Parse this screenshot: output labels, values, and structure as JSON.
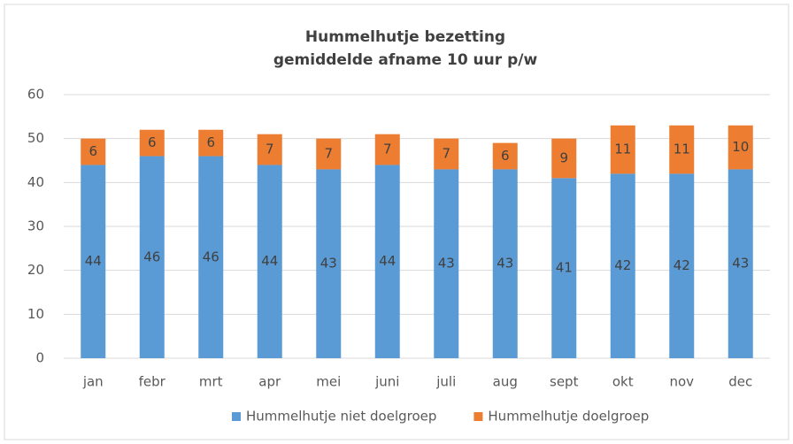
{
  "chart_data": {
    "type": "stacked_bar",
    "title": "Hummelhutje bezetting",
    "subtitle": "gemiddelde afname 10 uur p/w",
    "categories": [
      "jan",
      "febr",
      "mrt",
      "apr",
      "mei",
      "juni",
      "juli",
      "aug",
      "sept",
      "okt",
      "nov",
      "dec"
    ],
    "series": [
      {
        "name": "Hummelhutje niet doelgroep",
        "color": "#5b9bd5",
        "values": [
          44,
          46,
          46,
          44,
          43,
          44,
          43,
          43,
          41,
          42,
          42,
          43
        ]
      },
      {
        "name": "Hummelhutje doelgroep",
        "color": "#ed7d31",
        "values": [
          6,
          6,
          6,
          7,
          7,
          7,
          7,
          6,
          9,
          11,
          11,
          10
        ]
      }
    ],
    "ylim": [
      0,
      60
    ],
    "yticks": [
      0,
      10,
      20,
      30,
      40,
      50,
      60
    ],
    "grid": true,
    "legend": "bottom"
  }
}
